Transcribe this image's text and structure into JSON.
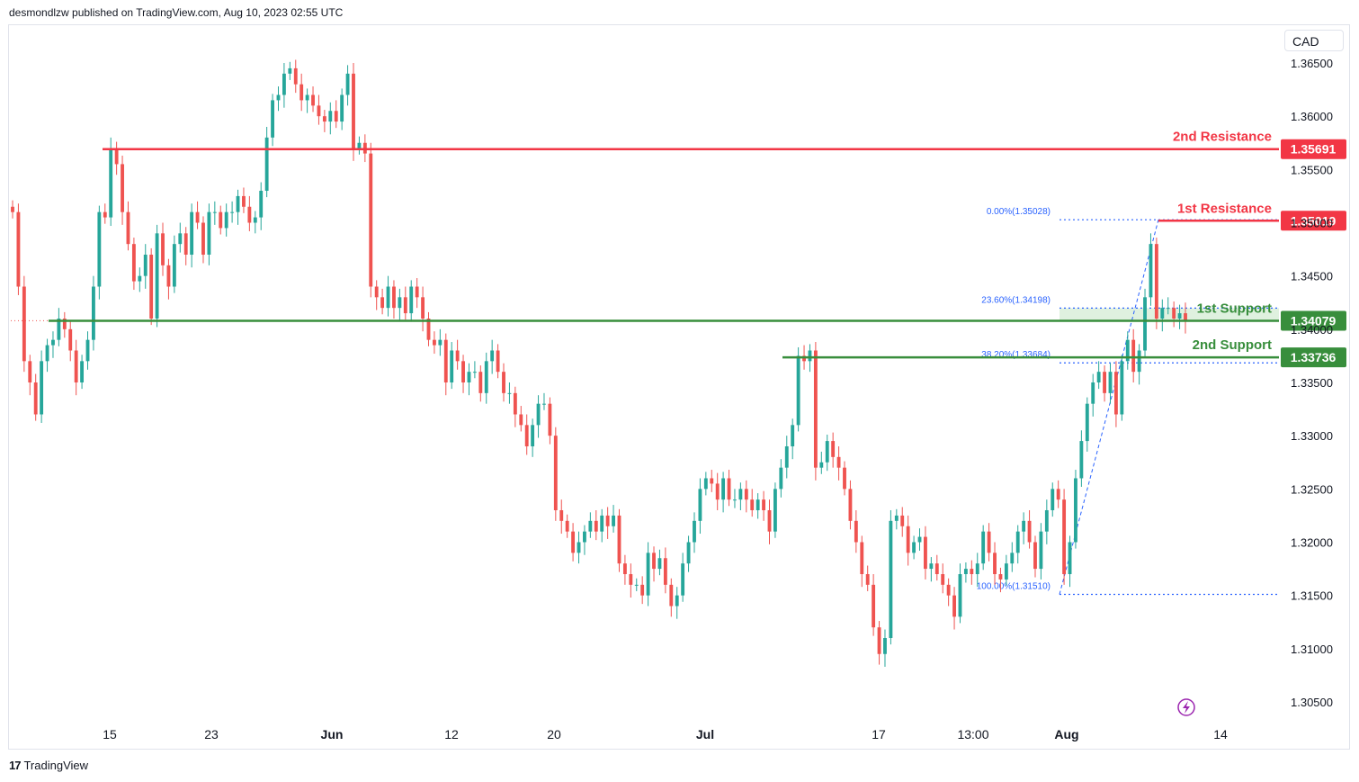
{
  "header": {
    "published": "desmondlzw published on TradingView.com, Aug 10, 2023 02:55 UTC"
  },
  "currency": "CAD",
  "footer": {
    "brand": "TradingView",
    "logo_glyph": "17"
  },
  "icons": {
    "flash": "lightning-icon"
  },
  "colors": {
    "up": "#26a69a",
    "down": "#ef5350",
    "resistance": "#f23645",
    "support": "#388e3c",
    "fib": "#2962ff"
  },
  "chart_data": {
    "type": "candlestick",
    "symbol_currency": "CAD",
    "y_ticks": [
      "1.36500",
      "1.36000",
      "1.35500",
      "1.35000",
      "1.34500",
      "1.34000",
      "1.33500",
      "1.33000",
      "1.32500",
      "1.32000",
      "1.31500",
      "1.31000",
      "1.30500"
    ],
    "x_ticks": [
      "15",
      "23",
      "Jun",
      "12",
      "20",
      "Jul",
      "17",
      "13:00",
      "Aug",
      "14"
    ],
    "ylim": [
      1.303,
      1.366
    ],
    "levels": [
      {
        "name": "2nd Resistance",
        "value": 1.35691,
        "label": "1.35691",
        "kind": "resistance"
      },
      {
        "name": "1st Resistance",
        "value": 1.35019,
        "label": "1.35019",
        "kind": "resistance"
      },
      {
        "name": "1st Support",
        "value": 1.34079,
        "label": "1.34079",
        "kind": "support"
      },
      {
        "name": "2nd Support",
        "value": 1.33736,
        "label": "1.33736",
        "kind": "support"
      }
    ],
    "fibonacci": [
      {
        "label": "0.00%(1.35028)",
        "value": 1.35028
      },
      {
        "label": "23.60%(1.34198)",
        "value": 1.34198
      },
      {
        "label": "38.20%(1.33684)",
        "value": 1.33684
      },
      {
        "label": "100.00%(1.31510)",
        "value": 1.3151
      }
    ],
    "series": [
      {
        "values": [
          1.351,
          1.344,
          1.337,
          1.335,
          1.332,
          1.337,
          1.3385,
          1.339,
          1.341,
          1.34,
          1.338,
          1.335,
          1.337,
          1.339,
          1.344,
          1.351,
          1.3505,
          1.357,
          1.3555,
          1.351,
          1.348,
          1.3445,
          1.345,
          1.347,
          1.341,
          1.349,
          1.346,
          1.344,
          1.348,
          1.349,
          1.347,
          1.351,
          1.35,
          1.347,
          1.351,
          1.351,
          1.3495,
          1.351,
          1.351,
          1.3525,
          1.3515,
          1.35,
          1.3505,
          1.353,
          1.358,
          1.3615,
          1.362,
          1.364,
          1.3645,
          1.363,
          1.3615,
          1.362,
          1.361,
          1.36,
          1.3595,
          1.3605,
          1.3595,
          1.362,
          1.364,
          1.357,
          1.3575,
          1.3565,
          1.344,
          1.343,
          1.342,
          1.344,
          1.342,
          1.343,
          1.3415,
          1.344,
          1.343,
          1.341,
          1.339,
          1.3385,
          1.339,
          1.335,
          1.338,
          1.337,
          1.335,
          1.336,
          1.336,
          1.334,
          1.337,
          1.338,
          1.336,
          1.334,
          1.334,
          1.332,
          1.331,
          1.329,
          1.331,
          1.333,
          1.333,
          1.33,
          1.323,
          1.322,
          1.321,
          1.319,
          1.32,
          1.321,
          1.322,
          1.321,
          1.3225,
          1.3215,
          1.3225,
          1.318,
          1.317,
          1.316,
          1.316,
          1.315,
          1.319,
          1.3175,
          1.3185,
          1.316,
          1.314,
          1.315,
          1.318,
          1.32,
          1.322,
          1.325,
          1.326,
          1.3255,
          1.324,
          1.326,
          1.324,
          1.324,
          1.325,
          1.324,
          1.323,
          1.324,
          1.323,
          1.321,
          1.325,
          1.327,
          1.329,
          1.331,
          1.3375,
          1.337,
          1.338,
          1.327,
          1.3275,
          1.3295,
          1.328,
          1.327,
          1.325,
          1.322,
          1.32,
          1.317,
          1.316,
          1.312,
          1.3095,
          1.311,
          1.322,
          1.3225,
          1.3215,
          1.319,
          1.32,
          1.3205,
          1.3175,
          1.318,
          1.317,
          1.316,
          1.315,
          1.313,
          1.317,
          1.3175,
          1.317,
          1.318,
          1.321,
          1.319,
          1.317,
          1.3165,
          1.318,
          1.319,
          1.321,
          1.322,
          1.32,
          1.3175,
          1.321,
          1.323,
          1.325,
          1.324,
          1.317,
          1.32,
          1.326,
          1.3295,
          1.333,
          1.335,
          1.336,
          1.334,
          1.336,
          1.332,
          1.337,
          1.339,
          1.336,
          1.338,
          1.343,
          1.348,
          1.341,
          1.342,
          1.342,
          1.341,
          1.3415,
          1.3408
        ]
      }
    ]
  }
}
